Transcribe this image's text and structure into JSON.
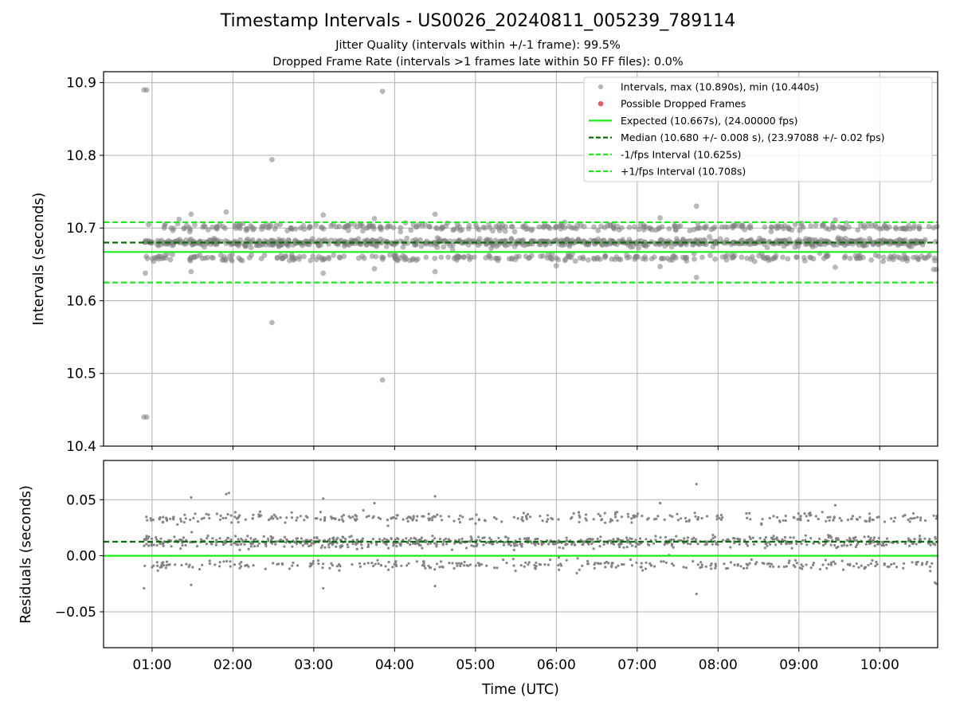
{
  "title": "Timestamp Intervals - US0026_20240811_005239_789114",
  "subtitle_1": "Jitter Quality (intervals within +/-1 frame): 99.5%",
  "subtitle_2": "Dropped Frame Rate (intervals >1 frames late within 50 FF files): 0.0%",
  "colors": {
    "points": "#808080",
    "dropped": "#e8474b",
    "expected": "#1aeb1a",
    "median": "#0a6e0a",
    "fps_bounds": "#1aeb1a",
    "grid": "#b0b0b0"
  },
  "chart_data": [
    {
      "type": "scatter",
      "panel": "intervals",
      "xlabel": "Time (UTC)",
      "ylabel": "Intervals (seconds)",
      "xlim": [
        "00:24",
        "10:43"
      ],
      "ylim": [
        10.4,
        10.915
      ],
      "grid": true,
      "legend_position": "top-right",
      "x_tick_labels": [
        "01:00",
        "02:00",
        "03:00",
        "04:00",
        "05:00",
        "06:00",
        "07:00",
        "08:00",
        "09:00",
        "10:00"
      ],
      "y_ticks": [
        10.4,
        10.5,
        10.6,
        10.7,
        10.8,
        10.9
      ],
      "y_tick_labels": [
        "10.4",
        "10.5",
        "10.6",
        "10.7",
        "10.8",
        "10.9"
      ],
      "reference_lines": {
        "expected": 10.667,
        "median": 10.68,
        "minus_fps": 10.625,
        "plus_fps": 10.708
      },
      "legend": [
        {
          "label": "Intervals, max (10.890s), min (10.440s)",
          "kind": "point",
          "color_key": "points"
        },
        {
          "label": "Possible Dropped Frames",
          "kind": "point",
          "color_key": "dropped"
        },
        {
          "label": "Expected (10.667s), (24.00000 fps)",
          "kind": "line",
          "color_key": "expected"
        },
        {
          "label": "Median (10.680 +/- 0.008 s), (23.97088 +/- 0.02 fps)",
          "kind": "dash",
          "color_key": "median"
        },
        {
          "label": "-1/fps Interval (10.625s)",
          "kind": "dash",
          "color_key": "fps_bounds"
        },
        {
          "label": "+1/fps Interval (10.708s)",
          "kind": "dash",
          "color_key": "fps_bounds"
        }
      ],
      "outliers": [
        {
          "x": "00:54",
          "y": 10.89
        },
        {
          "x": "00:56",
          "y": 10.89
        },
        {
          "x": "00:54",
          "y": 10.44
        },
        {
          "x": "00:56",
          "y": 10.44
        },
        {
          "x": "00:55",
          "y": 10.638
        },
        {
          "x": "01:20",
          "y": 10.712
        },
        {
          "x": "01:29",
          "y": 10.64
        },
        {
          "x": "01:29",
          "y": 10.719
        },
        {
          "x": "01:55",
          "y": 10.722
        },
        {
          "x": "02:29",
          "y": 10.794
        },
        {
          "x": "02:29",
          "y": 10.57
        },
        {
          "x": "03:07",
          "y": 10.638
        },
        {
          "x": "03:07",
          "y": 10.718
        },
        {
          "x": "03:45",
          "y": 10.713
        },
        {
          "x": "03:45",
          "y": 10.644
        },
        {
          "x": "03:51",
          "y": 10.888
        },
        {
          "x": "03:51",
          "y": 10.491
        },
        {
          "x": "04:30",
          "y": 10.64
        },
        {
          "x": "04:30",
          "y": 10.719
        },
        {
          "x": "06:00",
          "y": 10.648
        },
        {
          "x": "07:17",
          "y": 10.714
        },
        {
          "x": "07:17",
          "y": 10.647
        },
        {
          "x": "07:44",
          "y": 10.73
        },
        {
          "x": "07:44",
          "y": 10.632
        },
        {
          "x": "09:27",
          "y": 10.711
        },
        {
          "x": "09:27",
          "y": 10.646
        },
        {
          "x": "10:40",
          "y": 10.643
        },
        {
          "x": "10:42",
          "y": 10.643
        }
      ],
      "bulk_distribution": {
        "x_range": [
          "00:54",
          "10:43"
        ],
        "approx_point_count": 1400,
        "levels": [
          {
            "y": 10.659,
            "weight": 0.22
          },
          {
            "y": 10.68,
            "weight": 0.56
          },
          {
            "y": 10.701,
            "weight": 0.22
          }
        ],
        "spread": 0.004
      }
    },
    {
      "type": "scatter",
      "panel": "residuals",
      "xlabel": "Time (UTC)",
      "ylabel": "Residuals (seconds)",
      "xlim": [
        "00:24",
        "10:43"
      ],
      "ylim": [
        -0.082,
        0.085
      ],
      "grid": true,
      "x_tick_labels": [
        "01:00",
        "02:00",
        "03:00",
        "04:00",
        "05:00",
        "06:00",
        "07:00",
        "08:00",
        "09:00",
        "10:00"
      ],
      "y_ticks": [
        -0.05,
        0.0,
        0.05
      ],
      "y_tick_labels": [
        "−0.05",
        "0.00",
        "0.05"
      ],
      "reference_lines": {
        "zero": 0.0,
        "median": 0.0125
      },
      "outliers": [
        {
          "x": "00:54",
          "y": -0.029
        },
        {
          "x": "01:29",
          "y": -0.026
        },
        {
          "x": "01:29",
          "y": 0.052
        },
        {
          "x": "01:55",
          "y": 0.055
        },
        {
          "x": "01:57",
          "y": 0.056
        },
        {
          "x": "03:07",
          "y": 0.051
        },
        {
          "x": "03:07",
          "y": -0.029
        },
        {
          "x": "03:45",
          "y": 0.047
        },
        {
          "x": "04:30",
          "y": 0.053
        },
        {
          "x": "04:30",
          "y": -0.027
        },
        {
          "x": "07:17",
          "y": 0.047
        },
        {
          "x": "07:44",
          "y": 0.064
        },
        {
          "x": "07:44",
          "y": -0.034
        },
        {
          "x": "09:27",
          "y": 0.045
        },
        {
          "x": "10:41",
          "y": -0.024
        },
        {
          "x": "10:42",
          "y": -0.025
        }
      ],
      "bulk_distribution": {
        "x_range": [
          "00:54",
          "10:43"
        ],
        "approx_point_count": 1400,
        "levels": [
          {
            "y": -0.008,
            "weight": 0.22
          },
          {
            "y": 0.0125,
            "weight": 0.56
          },
          {
            "y": 0.034,
            "weight": 0.22
          }
        ],
        "spread": 0.004
      }
    }
  ]
}
